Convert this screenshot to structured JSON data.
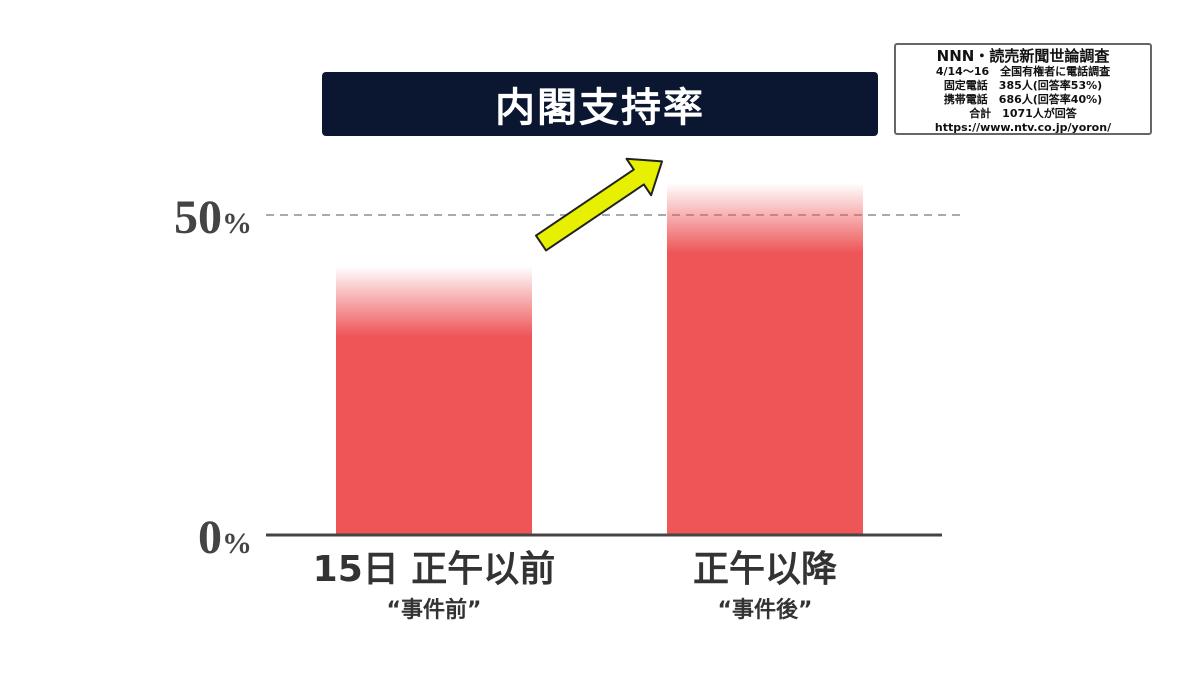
{
  "title": "内閣支持率",
  "survey": {
    "title": "NNN・読売新聞世論調査",
    "lines": [
      "4/14〜16　全国有権者に電話調査",
      "固定電話　385人(回答率53%)",
      "携帯電話　686人(回答率40%)",
      "合計　1071人が回答",
      "https://www.ntv.co.jp/yoron/"
    ]
  },
  "chart_data": {
    "type": "bar",
    "title": "内閣支持率",
    "categories": [
      "15日 正午以前",
      "正午以降"
    ],
    "category_sublabels": [
      "“事件前”",
      "“事件後”"
    ],
    "values": [
      42,
      55
    ],
    "ylim": [
      0,
      60
    ],
    "yticks": [
      {
        "value": 0,
        "label": "0%"
      },
      {
        "value": 50,
        "label": "50%"
      }
    ],
    "reference_line": 50,
    "bar_color": "#ee5557",
    "trend_arrow_color": "#e6f000",
    "grid": false
  }
}
